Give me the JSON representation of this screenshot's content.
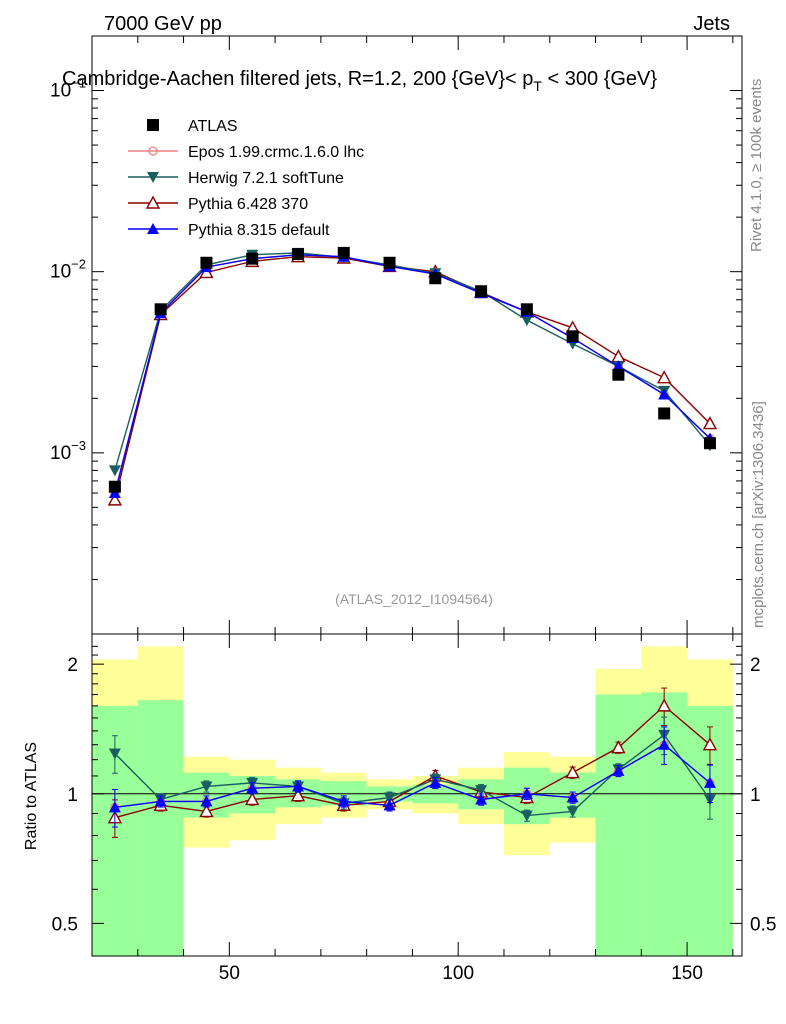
{
  "header": {
    "left": "7000 GeV pp",
    "right": "Jets",
    "title_main": "Cambridge-Aachen filtered jets, R=1.2, 200 {GeV}< p",
    "title_sub": "T",
    "title_tail": " < 300 {GeV}",
    "side_upper": "Rivet 4.1.0, ≥ 100k events",
    "side_lower": "mcplots.cern.ch [arXiv:1306.3436]",
    "watermark": "(ATLAS_2012_I1094564)"
  },
  "colors": {
    "ATLAS": "#000000",
    "Epos": "#f08080",
    "Herwig": "#1a5f5f",
    "Pythia6": "#8b0000",
    "Pythia8": "#0000ff",
    "band_inner": "#99ff99",
    "band_outer": "#ffff99"
  },
  "chart_data": [
    {
      "type": "scatter",
      "panel": "main",
      "ylog": true,
      "xlim": [
        20,
        162
      ],
      "ylim": [
        0.0001,
        0.2
      ],
      "x_tick_labels": [
        "50",
        "100",
        "150"
      ],
      "x_ticks": [
        50,
        100,
        150
      ],
      "y_tick_labels": [
        {
          "base": "10",
          "exp": "−1",
          "value": 0.1
        },
        {
          "base": "10",
          "exp": "−2",
          "value": 0.01
        },
        {
          "base": "10",
          "exp": "−3",
          "value": 0.001
        }
      ],
      "x": [
        25,
        35,
        45,
        55,
        65,
        75,
        85,
        95,
        105,
        115,
        125,
        135,
        145,
        155
      ],
      "series": [
        {
          "name": "ATLAS",
          "key": "ATLAS",
          "marker": "square",
          "line": false,
          "values": [
            0.00065,
            0.0062,
            0.0112,
            0.0118,
            0.0125,
            0.0127,
            0.0112,
            0.0092,
            0.0078,
            0.0062,
            0.0044,
            0.0027,
            0.00165,
            0.00113
          ]
        },
        {
          "name": "Epos 1.99.crmc.1.6.0 lhc",
          "key": "Epos",
          "marker": "open-circle",
          "line": true,
          "values": [
            0.0006,
            0.0059,
            0.0106,
            0.0118,
            0.0124,
            0.0121,
            0.0107,
            0.0097,
            0.0076,
            0.006,
            0.0043,
            0.003,
            0.0021,
            0.0012
          ]
        },
        {
          "name": "Herwig 7.2.1 softTune",
          "key": "Herwig",
          "marker": "down-triangle",
          "line": true,
          "values": [
            0.0008,
            0.0061,
            0.0109,
            0.0124,
            0.0127,
            0.012,
            0.0109,
            0.0098,
            0.0078,
            0.0054,
            0.004,
            0.003,
            0.0022,
            0.0011
          ]
        },
        {
          "name": "Pythia 6.428 370",
          "key": "Pythia6",
          "marker": "open-triangle",
          "line": true,
          "values": [
            0.00055,
            0.0058,
            0.0099,
            0.0114,
            0.0121,
            0.0119,
            0.0107,
            0.01,
            0.0077,
            0.006,
            0.0049,
            0.0034,
            0.0026,
            0.00145
          ]
        },
        {
          "name": "Pythia 8.315 default",
          "key": "Pythia8",
          "marker": "up-triangle",
          "line": true,
          "values": [
            0.0006,
            0.0059,
            0.0106,
            0.0118,
            0.0124,
            0.0121,
            0.0107,
            0.0097,
            0.0076,
            0.006,
            0.0043,
            0.003,
            0.0021,
            0.0012
          ]
        }
      ]
    },
    {
      "type": "line",
      "panel": "ratio",
      "ylog": true,
      "ylabel": "Ratio to ATLAS",
      "xlim": [
        20,
        162
      ],
      "ylim": [
        0.42,
        2.35
      ],
      "y_ticks": [
        0.5,
        1,
        2
      ],
      "y_tick_labels": [
        "0.5",
        "1",
        "2"
      ],
      "x_tick_labels": [
        "50",
        "100",
        "150"
      ],
      "x_ticks": [
        50,
        100,
        150
      ],
      "bin_edges": [
        20,
        30,
        40,
        50,
        60,
        70,
        80,
        90,
        100,
        110,
        120,
        130,
        140,
        150,
        160
      ],
      "band_inner": [
        [
          0.4,
          1.6
        ],
        [
          0.38,
          1.65
        ],
        [
          0.88,
          1.12
        ],
        [
          0.9,
          1.1
        ],
        [
          0.93,
          1.08
        ],
        [
          0.94,
          1.07
        ],
        [
          0.96,
          1.04
        ],
        [
          0.95,
          1.05
        ],
        [
          0.92,
          1.08
        ],
        [
          0.85,
          1.15
        ],
        [
          0.88,
          1.12
        ],
        [
          0.4,
          1.7
        ],
        [
          0.4,
          1.72
        ],
        [
          0.4,
          1.6
        ]
      ],
      "band_outer": [
        [
          0.46,
          2.05
        ],
        [
          0.44,
          2.2
        ],
        [
          0.75,
          1.22
        ],
        [
          0.78,
          1.2
        ],
        [
          0.85,
          1.15
        ],
        [
          0.88,
          1.12
        ],
        [
          0.92,
          1.08
        ],
        [
          0.9,
          1.1
        ],
        [
          0.85,
          1.15
        ],
        [
          0.72,
          1.25
        ],
        [
          0.77,
          1.22
        ],
        [
          0.54,
          1.95
        ],
        [
          0.4,
          2.2
        ],
        [
          0.46,
          2.05
        ]
      ],
      "x": [
        25,
        35,
        45,
        55,
        65,
        75,
        85,
        95,
        105,
        115,
        125,
        135,
        145,
        155
      ],
      "series": [
        {
          "name": "Epos 1.99.crmc.1.6.0 lhc",
          "key": "Epos",
          "marker": "open-circle",
          "values": [
            0.93,
            0.96,
            0.96,
            1.03,
            1.04,
            0.96,
            0.94,
            1.06,
            0.97,
            1.0,
            0.98,
            1.13,
            1.3,
            1.06
          ]
        },
        {
          "name": "Herwig 7.2.1 softTune",
          "key": "Herwig",
          "marker": "down-triangle",
          "values": [
            1.24,
            0.97,
            1.04,
            1.06,
            1.04,
            0.95,
            0.98,
            1.08,
            1.02,
            0.89,
            0.91,
            1.14,
            1.37,
            0.97
          ]
        },
        {
          "name": "Pythia 6.428 370",
          "key": "Pythia6",
          "marker": "open-triangle",
          "values": [
            0.88,
            0.94,
            0.91,
            0.97,
            0.99,
            0.94,
            0.96,
            1.1,
            1.01,
            0.98,
            1.12,
            1.28,
            1.6,
            1.3
          ]
        },
        {
          "name": "Pythia 8.315 default",
          "key": "Pythia8",
          "marker": "up-triangle",
          "values": [
            0.93,
            0.96,
            0.96,
            1.03,
            1.04,
            0.96,
            0.94,
            1.06,
            0.97,
            1.0,
            0.98,
            1.13,
            1.3,
            1.06
          ]
        }
      ]
    }
  ]
}
